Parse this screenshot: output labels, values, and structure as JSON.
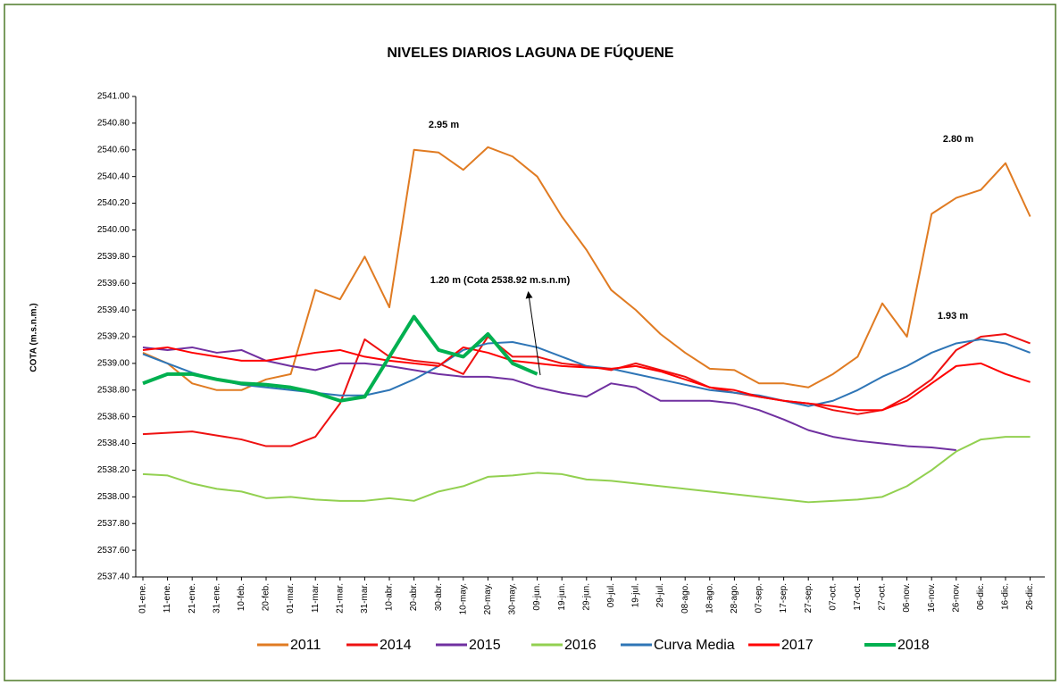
{
  "chart_data": {
    "type": "line",
    "title": "NIVELES DIARIOS LAGUNA DE FÚQUENE",
    "y_label": "COTA (m.s.n.m.)",
    "categories": [
      "01-ene.",
      "11-ene.",
      "21-ene.",
      "31-ene.",
      "10-feb.",
      "20-feb.",
      "01-mar.",
      "11-mar.",
      "21-mar.",
      "31-mar.",
      "10-abr.",
      "20-abr.",
      "30-abr.",
      "10-may.",
      "20-may.",
      "30-may.",
      "09-jun.",
      "19-jun.",
      "29-jun.",
      "09-jul.",
      "19-jul.",
      "29-jul.",
      "08-ago.",
      "18-ago.",
      "28-ago.",
      "07-sep.",
      "17-sep.",
      "27-sep.",
      "07-oct.",
      "17-oct.",
      "27-oct.",
      "06-nov.",
      "16-nov.",
      "26-nov.",
      "06-dic.",
      "16-dic.",
      "26-dic."
    ],
    "ylim": [
      2537.4,
      2541.0
    ],
    "yticks": [
      {
        "value": 2537.4,
        "label": "2537.40"
      },
      {
        "value": 2537.6,
        "label": "2537.60"
      },
      {
        "value": 2537.8,
        "label": "2537.80"
      },
      {
        "value": 2538.0,
        "label": "2538.00"
      },
      {
        "value": 2538.2,
        "label": "2538.20"
      },
      {
        "value": 2538.4,
        "label": "2538.40"
      },
      {
        "value": 2538.6,
        "label": "2538.60"
      },
      {
        "value": 2538.8,
        "label": "2538.80"
      },
      {
        "value": 2539.0,
        "label": "2539.00"
      },
      {
        "value": 2539.2,
        "label": "2539.20"
      },
      {
        "value": 2539.4,
        "label": "2539.40"
      },
      {
        "value": 2539.6,
        "label": "2539.60"
      },
      {
        "value": 2539.8,
        "label": "2539.80"
      },
      {
        "value": 2540.0,
        "label": "2540.00"
      },
      {
        "value": 2540.2,
        "label": "2540.20"
      },
      {
        "value": 2540.4,
        "label": "2540.40"
      },
      {
        "value": 2540.6,
        "label": "2540.60"
      },
      {
        "value": 2540.8,
        "label": "2540.80"
      },
      {
        "value": 2541.0,
        "label": "2541.00"
      }
    ],
    "series": [
      {
        "name": "2011",
        "color": "#e07b22",
        "values": [
          2539.08,
          2539.0,
          2538.85,
          2538.8,
          2538.8,
          2538.88,
          2538.92,
          2539.55,
          2539.48,
          2539.8,
          2539.42,
          2540.6,
          2540.58,
          2540.45,
          2540.62,
          2540.55,
          2540.4,
          2540.1,
          2539.85,
          2539.55,
          2539.4,
          2539.22,
          2539.08,
          2538.96,
          2538.95,
          2538.85,
          2538.85,
          2538.82,
          2538.92,
          2539.05,
          2539.45,
          2539.2,
          2540.12,
          2540.24,
          2540.3,
          2540.5,
          2540.1
        ]
      },
      {
        "name": "2014",
        "color": "#ee1111",
        "values": [
          2538.47,
          2538.48,
          2538.49,
          2538.46,
          2538.43,
          2538.38,
          2538.38,
          2538.45,
          2538.7,
          2539.18,
          2539.05,
          2539.02,
          2539.0,
          2538.92,
          2539.2,
          2539.05,
          2539.05,
          2539.0,
          2538.98,
          2538.95,
          2539.0,
          2538.95,
          2538.9,
          2538.82,
          2538.78,
          2538.75,
          2538.72,
          2538.7,
          2538.65,
          2538.62,
          2538.65,
          2538.75,
          2538.88,
          2539.1,
          2539.2,
          2539.22,
          2539.15
        ]
      },
      {
        "name": "2015",
        "color": "#7030a0",
        "values": [
          2539.12,
          2539.1,
          2539.12,
          2539.08,
          2539.1,
          2539.02,
          2538.98,
          2538.95,
          2539.0,
          2539.0,
          2538.98,
          2538.95,
          2538.92,
          2538.9,
          2538.9,
          2538.88,
          2538.82,
          2538.78,
          2538.75,
          2538.85,
          2538.82,
          2538.72,
          2538.72,
          2538.72,
          2538.7,
          2538.65,
          2538.58,
          2538.5,
          2538.45,
          2538.42,
          2538.4,
          2538.38,
          2538.37,
          2538.35,
          null,
          null,
          null
        ]
      },
      {
        "name": "2016",
        "color": "#92d050",
        "values": [
          2538.17,
          2538.16,
          2538.1,
          2538.06,
          2538.04,
          2537.99,
          2538.0,
          2537.98,
          2537.97,
          2537.97,
          2537.99,
          2537.97,
          2538.04,
          2538.08,
          2538.15,
          2538.16,
          2538.18,
          2538.17,
          2538.13,
          2538.12,
          2538.1,
          2538.08,
          2538.06,
          2538.04,
          2538.02,
          2538.0,
          2537.98,
          2537.96,
          2537.97,
          2537.98,
          2538.0,
          2538.08,
          2538.2,
          2538.34,
          2538.43,
          2538.45,
          2538.45
        ]
      },
      {
        "name": "Curva Media",
        "color": "#2e75b6",
        "values": [
          2539.07,
          2539.0,
          2538.93,
          2538.88,
          2538.84,
          2538.82,
          2538.8,
          2538.78,
          2538.76,
          2538.76,
          2538.8,
          2538.88,
          2538.98,
          2539.1,
          2539.15,
          2539.16,
          2539.12,
          2539.05,
          2538.98,
          2538.96,
          2538.92,
          2538.88,
          2538.84,
          2538.8,
          2538.78,
          2538.76,
          2538.72,
          2538.68,
          2538.72,
          2538.8,
          2538.9,
          2538.98,
          2539.08,
          2539.15,
          2539.18,
          2539.15,
          2539.08
        ]
      },
      {
        "name": "2017",
        "color": "#ff0000",
        "values": [
          2539.1,
          2539.12,
          2539.08,
          2539.05,
          2539.02,
          2539.02,
          2539.05,
          2539.08,
          2539.1,
          2539.05,
          2539.02,
          2539.0,
          2538.98,
          2539.12,
          2539.08,
          2539.02,
          2539.0,
          2538.98,
          2538.97,
          2538.96,
          2538.98,
          2538.94,
          2538.88,
          2538.82,
          2538.8,
          2538.75,
          2538.72,
          2538.7,
          2538.68,
          2538.65,
          2538.65,
          2538.72,
          2538.85,
          2538.98,
          2539.0,
          2538.92,
          2538.86
        ]
      },
      {
        "name": "2018",
        "color": "#00b050",
        "values": [
          2538.85,
          2538.92,
          2538.92,
          2538.88,
          2538.85,
          2538.84,
          2538.82,
          2538.78,
          2538.72,
          2538.75,
          2539.05,
          2539.35,
          2539.1,
          2539.05,
          2539.22,
          2539.0,
          2538.92,
          null,
          null,
          null,
          null,
          null,
          null,
          null,
          null,
          null,
          null,
          null,
          null,
          null,
          null,
          null,
          null,
          null,
          null,
          null,
          null
        ]
      }
    ],
    "annotations": [
      "2.95 m",
      "1.20 m (Cota 2538.92 m.s.n.m)",
      "2.80 m",
      "1.93 m"
    ]
  }
}
